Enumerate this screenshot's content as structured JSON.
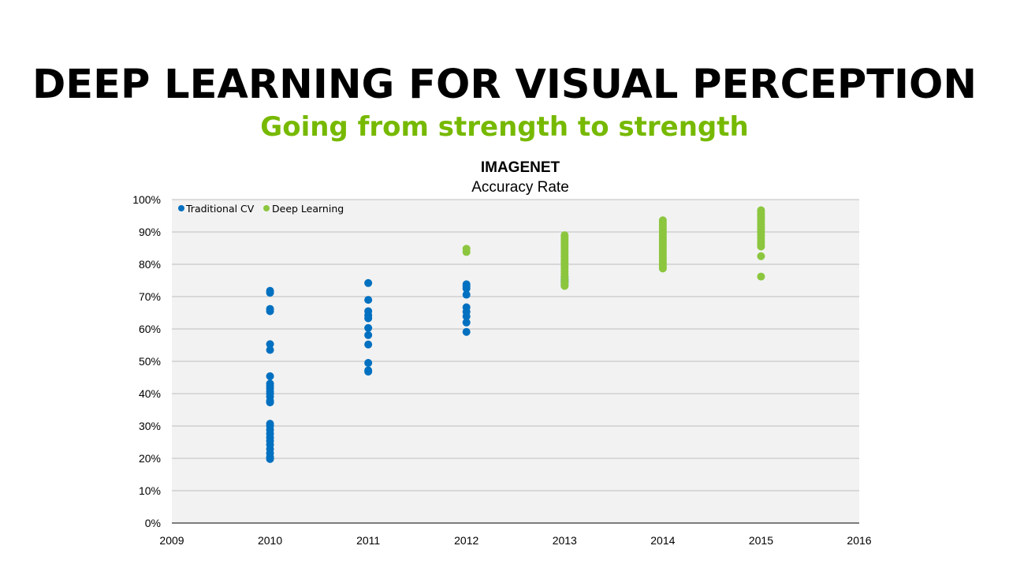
{
  "slide": {
    "title": "DEEP LEARNING FOR VISUAL PERCEPTION",
    "subtitle": "Going from strength to strength"
  },
  "colors": {
    "traditional": "#0070C0",
    "deep": "#8CC63F",
    "subtitle": "#76B900",
    "plot_bg": "#F2F2F2",
    "grid": "#BFBFBF"
  },
  "chart_data": {
    "type": "scatter",
    "title": "IMAGENET",
    "subtitle": "Accuracy Rate",
    "xlim": [
      2009,
      2016
    ],
    "ylim": [
      0,
      1
    ],
    "x_ticks": [
      "2009",
      "2010",
      "2011",
      "2012",
      "2013",
      "2014",
      "2015",
      "2016"
    ],
    "y_ticks": [
      "0%",
      "10%",
      "20%",
      "30%",
      "40%",
      "50%",
      "60%",
      "70%",
      "80%",
      "90%",
      "100%"
    ],
    "legend_position": "top-left",
    "grid": true,
    "series": [
      {
        "name": "Traditional CV",
        "color": "#0070C0",
        "points": [
          [
            2010,
            0.718
          ],
          [
            2010,
            0.712
          ],
          [
            2010,
            0.662
          ],
          [
            2010,
            0.655
          ],
          [
            2010,
            0.553
          ],
          [
            2010,
            0.535
          ],
          [
            2010,
            0.454
          ],
          [
            2010,
            0.431
          ],
          [
            2010,
            0.424
          ],
          [
            2010,
            0.416
          ],
          [
            2010,
            0.407
          ],
          [
            2010,
            0.4
          ],
          [
            2010,
            0.391
          ],
          [
            2010,
            0.378
          ],
          [
            2010,
            0.373
          ],
          [
            2010,
            0.307
          ],
          [
            2010,
            0.3
          ],
          [
            2010,
            0.288
          ],
          [
            2010,
            0.276
          ],
          [
            2010,
            0.264
          ],
          [
            2010,
            0.254
          ],
          [
            2010,
            0.242
          ],
          [
            2010,
            0.229
          ],
          [
            2010,
            0.216
          ],
          [
            2010,
            0.204
          ],
          [
            2010,
            0.198
          ],
          [
            2011,
            0.742
          ],
          [
            2011,
            0.69
          ],
          [
            2011,
            0.655
          ],
          [
            2011,
            0.642
          ],
          [
            2011,
            0.633
          ],
          [
            2011,
            0.603
          ],
          [
            2011,
            0.581
          ],
          [
            2011,
            0.552
          ],
          [
            2011,
            0.495
          ],
          [
            2011,
            0.472
          ],
          [
            2011,
            0.468
          ],
          [
            2012,
            0.738
          ],
          [
            2012,
            0.732
          ],
          [
            2012,
            0.725
          ],
          [
            2012,
            0.706
          ],
          [
            2012,
            0.667
          ],
          [
            2012,
            0.653
          ],
          [
            2012,
            0.639
          ],
          [
            2012,
            0.62
          ],
          [
            2012,
            0.591
          ],
          [
            2013,
            0.762
          ],
          [
            2013,
            0.755
          ],
          [
            2013,
            0.748
          ],
          [
            2013,
            0.742
          ],
          [
            2013,
            0.735
          ]
        ]
      },
      {
        "name": "Deep Learning",
        "color": "#8CC63F",
        "points": [
          [
            2012,
            0.848
          ],
          [
            2012,
            0.838
          ],
          [
            2013,
            0.89
          ],
          [
            2013,
            0.884
          ],
          [
            2013,
            0.878
          ],
          [
            2013,
            0.872
          ],
          [
            2013,
            0.866
          ],
          [
            2013,
            0.86
          ],
          [
            2013,
            0.853
          ],
          [
            2013,
            0.846
          ],
          [
            2013,
            0.839
          ],
          [
            2013,
            0.832
          ],
          [
            2013,
            0.824
          ],
          [
            2013,
            0.817
          ],
          [
            2013,
            0.81
          ],
          [
            2013,
            0.803
          ],
          [
            2013,
            0.795
          ],
          [
            2013,
            0.787
          ],
          [
            2013,
            0.779
          ],
          [
            2013,
            0.77
          ],
          [
            2013,
            0.761
          ],
          [
            2013,
            0.752
          ],
          [
            2013,
            0.742
          ],
          [
            2013,
            0.733
          ],
          [
            2014,
            0.936
          ],
          [
            2014,
            0.93
          ],
          [
            2014,
            0.924
          ],
          [
            2014,
            0.918
          ],
          [
            2014,
            0.912
          ],
          [
            2014,
            0.906
          ],
          [
            2014,
            0.9
          ],
          [
            2014,
            0.894
          ],
          [
            2014,
            0.888
          ],
          [
            2014,
            0.882
          ],
          [
            2014,
            0.876
          ],
          [
            2014,
            0.87
          ],
          [
            2014,
            0.864
          ],
          [
            2014,
            0.858
          ],
          [
            2014,
            0.852
          ],
          [
            2014,
            0.846
          ],
          [
            2014,
            0.84
          ],
          [
            2014,
            0.834
          ],
          [
            2014,
            0.828
          ],
          [
            2014,
            0.822
          ],
          [
            2014,
            0.816
          ],
          [
            2014,
            0.81
          ],
          [
            2014,
            0.804
          ],
          [
            2014,
            0.798
          ],
          [
            2014,
            0.792
          ],
          [
            2014,
            0.787
          ],
          [
            2015,
            0.967
          ],
          [
            2015,
            0.961
          ],
          [
            2015,
            0.955
          ],
          [
            2015,
            0.949
          ],
          [
            2015,
            0.943
          ],
          [
            2015,
            0.937
          ],
          [
            2015,
            0.93
          ],
          [
            2015,
            0.923
          ],
          [
            2015,
            0.916
          ],
          [
            2015,
            0.909
          ],
          [
            2015,
            0.902
          ],
          [
            2015,
            0.895
          ],
          [
            2015,
            0.888
          ],
          [
            2015,
            0.88
          ],
          [
            2015,
            0.87
          ],
          [
            2015,
            0.862
          ],
          [
            2015,
            0.855
          ],
          [
            2015,
            0.825
          ],
          [
            2015,
            0.762
          ]
        ]
      }
    ]
  }
}
